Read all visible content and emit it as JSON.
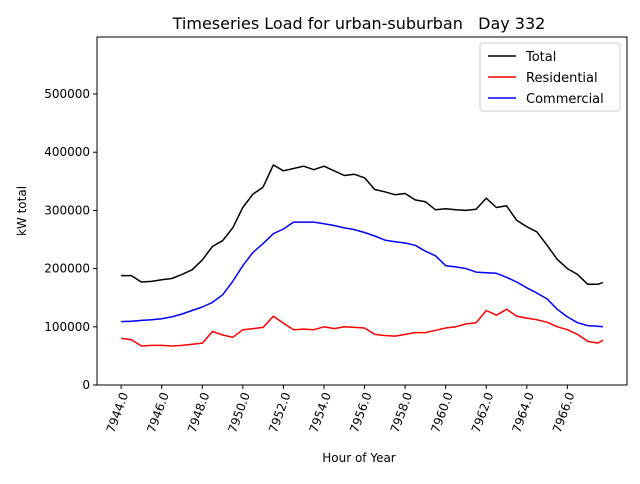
{
  "chart_data": {
    "type": "line",
    "title": "Timeseries Load for urban-suburban   Day 332",
    "xlabel": "Hour of Year",
    "ylabel": "kW total",
    "xlim": [
      7942.81,
      7968.94
    ],
    "ylim": [
      0,
      598000
    ],
    "xticks": [
      7944,
      7946,
      7948,
      7950,
      7952,
      7954,
      7956,
      7958,
      7960,
      7962,
      7964,
      7966
    ],
    "xtick_labels": [
      "7944.0",
      "7946.0",
      "7948.0",
      "7950.0",
      "7952.0",
      "7954.0",
      "7956.0",
      "7958.0",
      "7960.0",
      "7962.0",
      "7964.0",
      "7966.0"
    ],
    "yticks": [
      0,
      100000,
      200000,
      300000,
      400000,
      500000
    ],
    "ytick_labels": [
      "0",
      "100000",
      "200000",
      "300000",
      "400000",
      "500000"
    ],
    "grid": false,
    "legend_position": "top-right",
    "x": [
      7944,
      7944.5,
      7945,
      7945.5,
      7946,
      7946.5,
      7947,
      7947.5,
      7948,
      7948.5,
      7949,
      7949.5,
      7950,
      7950.5,
      7951,
      7951.5,
      7952,
      7952.5,
      7953,
      7953.5,
      7954,
      7954.5,
      7955,
      7955.5,
      7956,
      7956.5,
      7957,
      7957.5,
      7958,
      7958.5,
      7959,
      7959.5,
      7960,
      7960.5,
      7961,
      7961.5,
      7962,
      7962.5,
      7963,
      7963.5,
      7964,
      7964.5,
      7965,
      7965.5,
      7966,
      7966.5,
      7967,
      7967.5,
      7967.75
    ],
    "series": [
      {
        "name": "Total",
        "color": "#000000",
        "values": [
          188000,
          188000,
          177000,
          178000,
          181000,
          183000,
          190000,
          198000,
          215000,
          238000,
          248000,
          270000,
          305000,
          328000,
          340000,
          378000,
          368000,
          372000,
          376000,
          370000,
          376000,
          368000,
          360000,
          362000,
          356000,
          336000,
          332000,
          327000,
          329000,
          318000,
          315000,
          301000,
          303000,
          301000,
          300000,
          302000,
          321000,
          305000,
          308000,
          283000,
          272000,
          263000,
          240000,
          216000,
          200000,
          190000,
          173000,
          173000,
          176000
        ]
      },
      {
        "name": "Residential",
        "color": "#ff0000",
        "values": [
          80000,
          78000,
          67000,
          68000,
          68000,
          67000,
          68000,
          70000,
          72000,
          92000,
          86000,
          82000,
          95000,
          97000,
          99000,
          118000,
          106000,
          95000,
          96000,
          95000,
          100000,
          97000,
          100000,
          99000,
          98000,
          87000,
          85000,
          84000,
          87000,
          90000,
          90000,
          94000,
          98000,
          100000,
          105000,
          107000,
          128000,
          120000,
          130000,
          118000,
          115000,
          112000,
          108000,
          100000,
          95000,
          87000,
          75000,
          72000,
          77000
        ]
      },
      {
        "name": "Commercial",
        "color": "#0000ff",
        "values": [
          109000,
          109500,
          111000,
          112000,
          114000,
          117000,
          122000,
          128000,
          134000,
          142000,
          155000,
          178000,
          205000,
          228000,
          243000,
          260000,
          268000,
          280000,
          280000,
          280000,
          277000,
          274000,
          270000,
          267000,
          262000,
          256000,
          249000,
          246000,
          244000,
          240000,
          230000,
          222000,
          205000,
          203000,
          200000,
          194000,
          193000,
          192000,
          185000,
          177000,
          167000,
          158000,
          148000,
          130000,
          117000,
          107000,
          102000,
          101000,
          100000
        ]
      }
    ]
  }
}
